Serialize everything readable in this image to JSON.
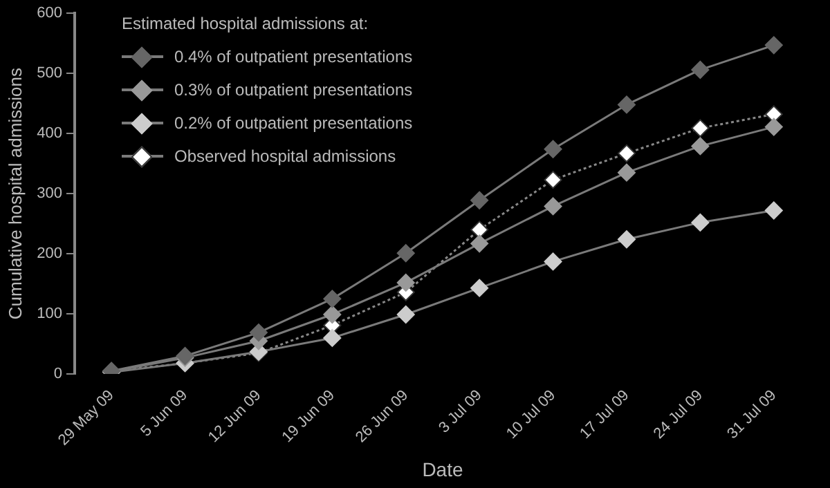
{
  "chart_data": {
    "type": "line",
    "xlabel": "Date",
    "ylabel": "Cumulative hospital admissions",
    "legend_title": "Estimated hospital admissions at:",
    "categories": [
      "29 May 09",
      "5 Jun 09",
      "12 Jun 09",
      "19 Jun 09",
      "26 Jun 09",
      "3 Jul 09",
      "10 Jul 09",
      "17 Jul 09",
      "24 Jul 09",
      "31 Jul 09"
    ],
    "series": [
      {
        "name": "0.4% of outpatient presentations",
        "color": "#666666",
        "values": [
          5,
          30,
          69,
          125,
          201,
          289,
          374,
          448,
          506,
          547
        ]
      },
      {
        "name": "0.3% of outpatient presentations",
        "color": "#999999",
        "values": [
          4,
          27,
          55,
          99,
          152,
          217,
          279,
          335,
          379,
          411
        ]
      },
      {
        "name": "0.2% of outpatient presentations",
        "color": "#cccccc",
        "values": [
          3,
          18,
          37,
          60,
          99,
          143,
          187,
          224,
          252,
          272
        ]
      },
      {
        "name": "Observed hospital admissions",
        "color": "#ffffff",
        "line_style": "dotted",
        "values": [
          5,
          18,
          35,
          81,
          136,
          240,
          323,
          367,
          409,
          432
        ]
      }
    ],
    "ylim": [
      0,
      600
    ],
    "yticks": [
      0,
      100,
      200,
      300,
      400,
      500,
      600
    ],
    "grid": false,
    "legend": "top left",
    "marker": "diamond",
    "line_style": "solid"
  }
}
